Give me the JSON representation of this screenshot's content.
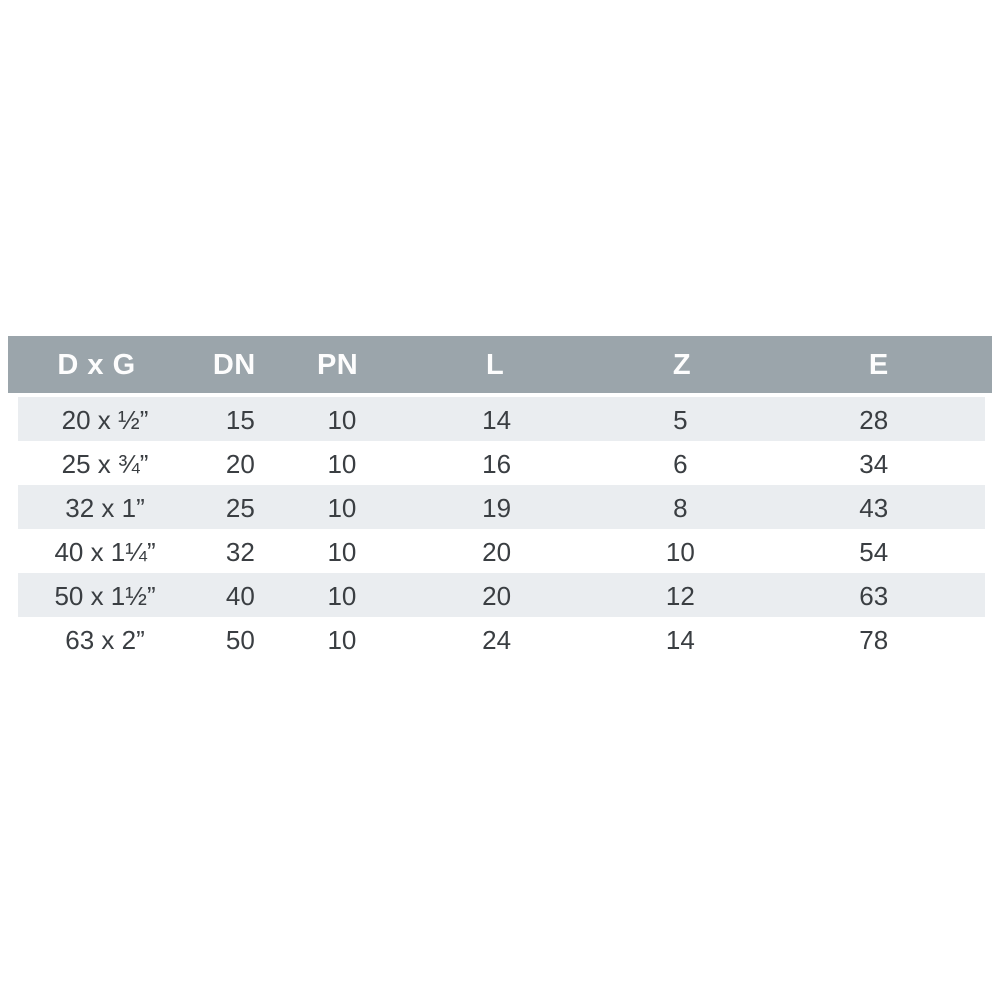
{
  "chart_data": {
    "type": "table",
    "title": "",
    "columns": [
      "D x G",
      "DN",
      "PN",
      "L",
      "Z",
      "E"
    ],
    "rows": [
      [
        "20 x ½”",
        "15",
        "10",
        "14",
        "5",
        "28"
      ],
      [
        "25 x ¾”",
        "20",
        "10",
        "16",
        "6",
        "34"
      ],
      [
        "32 x 1”",
        "25",
        "10",
        "19",
        "8",
        "43"
      ],
      [
        "40 x 1¼”",
        "32",
        "10",
        "20",
        "10",
        "54"
      ],
      [
        "50 x 1½”",
        "40",
        "10",
        "20",
        "12",
        "63"
      ],
      [
        "63 x 2”",
        "50",
        "10",
        "24",
        "14",
        "78"
      ]
    ],
    "layout": {
      "striped_rows": "odd rows shaded, starting with first data row",
      "header_position": "top"
    }
  },
  "colors": {
    "page_background": "#ffffff",
    "header_background": "#9ba5ab",
    "header_text": "#fdfdfd",
    "stripe_row_background": "#eaedf0",
    "plain_row_background": "#ffffff",
    "body_text": "#3a3e42"
  }
}
